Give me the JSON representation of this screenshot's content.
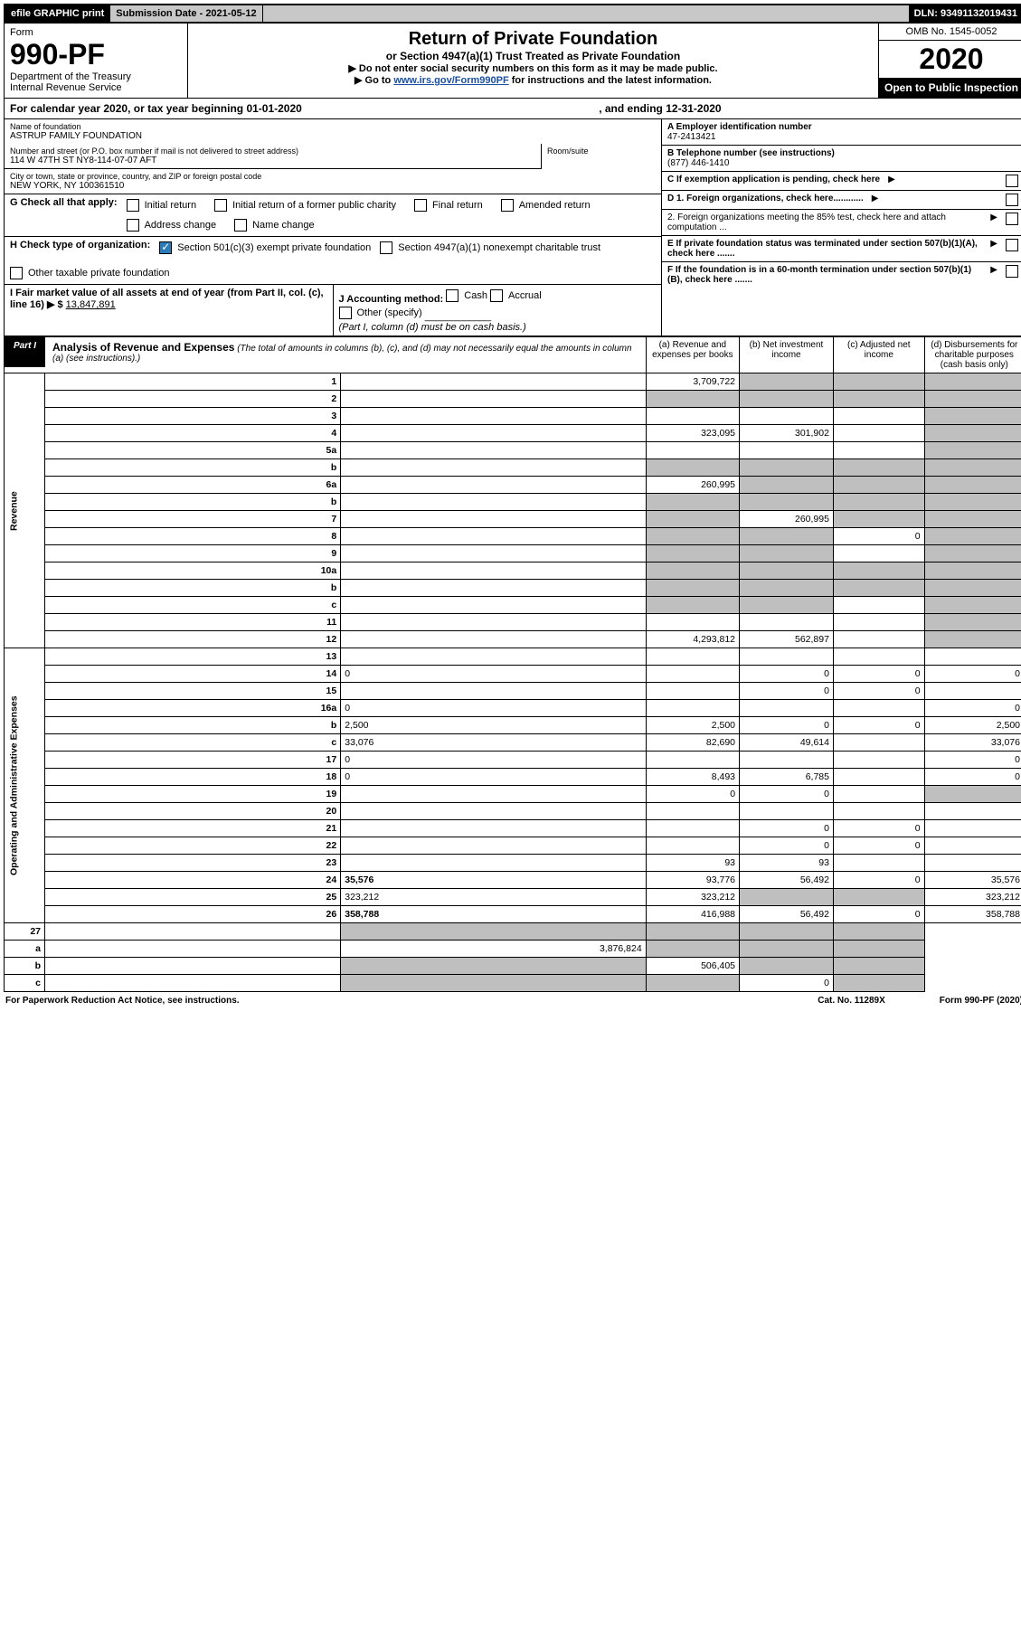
{
  "topbar": {
    "efile": "efile GRAPHIC print",
    "subdate_label": "Submission Date - 2021-05-12",
    "dln": "DLN: 93491132019431"
  },
  "header": {
    "form_label": "Form",
    "form_no": "990-PF",
    "dept1": "Department of the Treasury",
    "dept2": "Internal Revenue Service",
    "title": "Return of Private Foundation",
    "subtitle": "or Section 4947(a)(1) Trust Treated as Private Foundation",
    "instr1": "▶ Do not enter social security numbers on this form as it may be made public.",
    "instr2_pre": "▶ Go to ",
    "instr2_link": "www.irs.gov/Form990PF",
    "instr2_post": " for instructions and the latest information.",
    "omb": "OMB No. 1545-0052",
    "year": "2020",
    "open": "Open to Public Inspection"
  },
  "calyear": {
    "pre": "For calendar year 2020, or tax year beginning 01-01-2020",
    "mid": ", and ending 12-31-2020"
  },
  "id": {
    "name_label": "Name of foundation",
    "name": "ASTRUP FAMILY FOUNDATION",
    "addr_label": "Number and street (or P.O. box number if mail is not delivered to street address)",
    "addr": "114 W 47TH ST NY8-114-07-07 AFT",
    "room_label": "Room/suite",
    "city_label": "City or town, state or province, country, and ZIP or foreign postal code",
    "city": "NEW YORK, NY  100361510",
    "a_label": "A Employer identification number",
    "a_value": "47-2413421",
    "b_label": "B Telephone number (see instructions)",
    "b_value": "(877) 446-1410",
    "c_label": "C If exemption application is pending, check here",
    "d1": "D 1. Foreign organizations, check here............",
    "d2": "2. Foreign organizations meeting the 85% test, check here and attach computation ...",
    "e": "E  If private foundation status was terminated under section 507(b)(1)(A), check here .......",
    "f": "F  If the foundation is in a 60-month termination under section 507(b)(1)(B), check here ......."
  },
  "g": {
    "label": "G Check all that apply:",
    "opts": [
      "Initial return",
      "Initial return of a former public charity",
      "Final return",
      "Amended return",
      "Address change",
      "Name change"
    ]
  },
  "h": {
    "label": "H Check type of organization:",
    "o1": "Section 501(c)(3) exempt private foundation",
    "o2": "Section 4947(a)(1) nonexempt charitable trust",
    "o3": "Other taxable private foundation"
  },
  "i": {
    "label": "I Fair market value of all assets at end of year (from Part II, col. (c), line 16) ▶ $",
    "value": "13,847,891"
  },
  "j": {
    "label": "J Accounting method:",
    "cash": "Cash",
    "accrual": "Accrual",
    "other": "Other (specify)",
    "note": "(Part I, column (d) must be on cash basis.)"
  },
  "part1": {
    "tab": "Part I",
    "title": "Analysis of Revenue and Expenses",
    "note": " (The total of amounts in columns (b), (c), and (d) may not necessarily equal the amounts in column (a) (see instructions).)",
    "cols": {
      "a": "(a) Revenue and expenses per books",
      "b": "(b) Net investment income",
      "c": "(c) Adjusted net income",
      "d": "(d) Disbursements for charitable purposes (cash basis only)"
    }
  },
  "vlabels": {
    "rev": "Revenue",
    "exp": "Operating and Administrative Expenses"
  },
  "rows": [
    {
      "n": "1",
      "d": "",
      "a": "3,709,722",
      "b": "",
      "c": "",
      "sb": true,
      "sc": true,
      "sd": true
    },
    {
      "n": "2",
      "d": "",
      "a": "",
      "b": "",
      "c": "",
      "sa": true,
      "sb": true,
      "sc": true,
      "sd": true,
      "html": true
    },
    {
      "n": "3",
      "d": "",
      "a": "",
      "b": "",
      "c": "",
      "sd": true
    },
    {
      "n": "4",
      "d": "",
      "a": "323,095",
      "b": "301,902",
      "c": "",
      "sd": true
    },
    {
      "n": "5a",
      "d": "",
      "a": "",
      "b": "",
      "c": "",
      "sd": true
    },
    {
      "n": "b",
      "d": "",
      "a": "",
      "b": "",
      "c": "",
      "sa": true,
      "sb": true,
      "sc": true,
      "sd": true
    },
    {
      "n": "6a",
      "d": "",
      "a": "260,995",
      "b": "",
      "c": "",
      "sb": true,
      "sc": true,
      "sd": true
    },
    {
      "n": "b",
      "d": "",
      "a": "",
      "b": "",
      "c": "",
      "sa": true,
      "sb": true,
      "sc": true,
      "sd": true
    },
    {
      "n": "7",
      "d": "",
      "a": "",
      "b": "260,995",
      "c": "",
      "sa": true,
      "sc": true,
      "sd": true
    },
    {
      "n": "8",
      "d": "",
      "a": "",
      "b": "",
      "c": "0",
      "sa": true,
      "sb": true,
      "sd": true
    },
    {
      "n": "9",
      "d": "",
      "a": "",
      "b": "",
      "c": "",
      "sa": true,
      "sb": true,
      "sd": true
    },
    {
      "n": "10a",
      "d": "",
      "a": "",
      "b": "",
      "c": "",
      "sa": true,
      "sb": true,
      "sc": true,
      "sd": true
    },
    {
      "n": "b",
      "d": "",
      "a": "",
      "b": "",
      "c": "",
      "sa": true,
      "sb": true,
      "sc": true,
      "sd": true
    },
    {
      "n": "c",
      "d": "",
      "a": "",
      "b": "",
      "c": "",
      "sa": true,
      "sb": true,
      "sd": true
    },
    {
      "n": "11",
      "d": "",
      "a": "",
      "b": "",
      "c": "",
      "sd": true
    },
    {
      "n": "12",
      "d": "",
      "a": "4,293,812",
      "b": "562,897",
      "c": "",
      "sd": true,
      "bold": true
    }
  ],
  "exp_rows": [
    {
      "n": "13",
      "d": "",
      "a": "",
      "b": "",
      "c": ""
    },
    {
      "n": "14",
      "d": "0",
      "a": "",
      "b": "0",
      "c": "0"
    },
    {
      "n": "15",
      "d": "",
      "a": "",
      "b": "0",
      "c": "0"
    },
    {
      "n": "16a",
      "d": "0",
      "a": "",
      "b": "",
      "c": ""
    },
    {
      "n": "b",
      "d": "2,500",
      "a": "2,500",
      "b": "0",
      "c": "0"
    },
    {
      "n": "c",
      "d": "33,076",
      "a": "82,690",
      "b": "49,614",
      "c": ""
    },
    {
      "n": "17",
      "d": "0",
      "a": "",
      "b": "",
      "c": ""
    },
    {
      "n": "18",
      "d": "0",
      "a": "8,493",
      "b": "6,785",
      "c": ""
    },
    {
      "n": "19",
      "d": "",
      "a": "0",
      "b": "0",
      "c": "",
      "sd": true
    },
    {
      "n": "20",
      "d": "",
      "a": "",
      "b": "",
      "c": ""
    },
    {
      "n": "21",
      "d": "",
      "a": "",
      "b": "0",
      "c": "0"
    },
    {
      "n": "22",
      "d": "",
      "a": "",
      "b": "0",
      "c": "0"
    },
    {
      "n": "23",
      "d": "",
      "a": "93",
      "b": "93",
      "c": ""
    },
    {
      "n": "24",
      "d": "35,576",
      "a": "93,776",
      "b": "56,492",
      "c": "0",
      "bold": true
    },
    {
      "n": "25",
      "d": "323,212",
      "a": "323,212",
      "b": "",
      "c": "",
      "sb": true,
      "sc": true
    },
    {
      "n": "26",
      "d": "358,788",
      "a": "416,988",
      "b": "56,492",
      "c": "0",
      "bold": true
    }
  ],
  "final_rows": [
    {
      "n": "27",
      "d": "",
      "a": "",
      "b": "",
      "c": "",
      "sa": true,
      "sb": true,
      "sc": true,
      "sd": true
    },
    {
      "n": "a",
      "d": "",
      "a": "3,876,824",
      "b": "",
      "c": "",
      "sb": true,
      "sc": true,
      "sd": true,
      "bold": true
    },
    {
      "n": "b",
      "d": "",
      "a": "",
      "b": "506,405",
      "c": "",
      "sa": true,
      "sc": true,
      "sd": true,
      "bold": true
    },
    {
      "n": "c",
      "d": "",
      "a": "",
      "b": "",
      "c": "0",
      "sa": true,
      "sb": true,
      "sd": true,
      "bold": true
    }
  ],
  "footer": {
    "left": "For Paperwork Reduction Act Notice, see instructions.",
    "cat": "Cat. No. 11289X",
    "form": "Form 990-PF (2020)"
  }
}
